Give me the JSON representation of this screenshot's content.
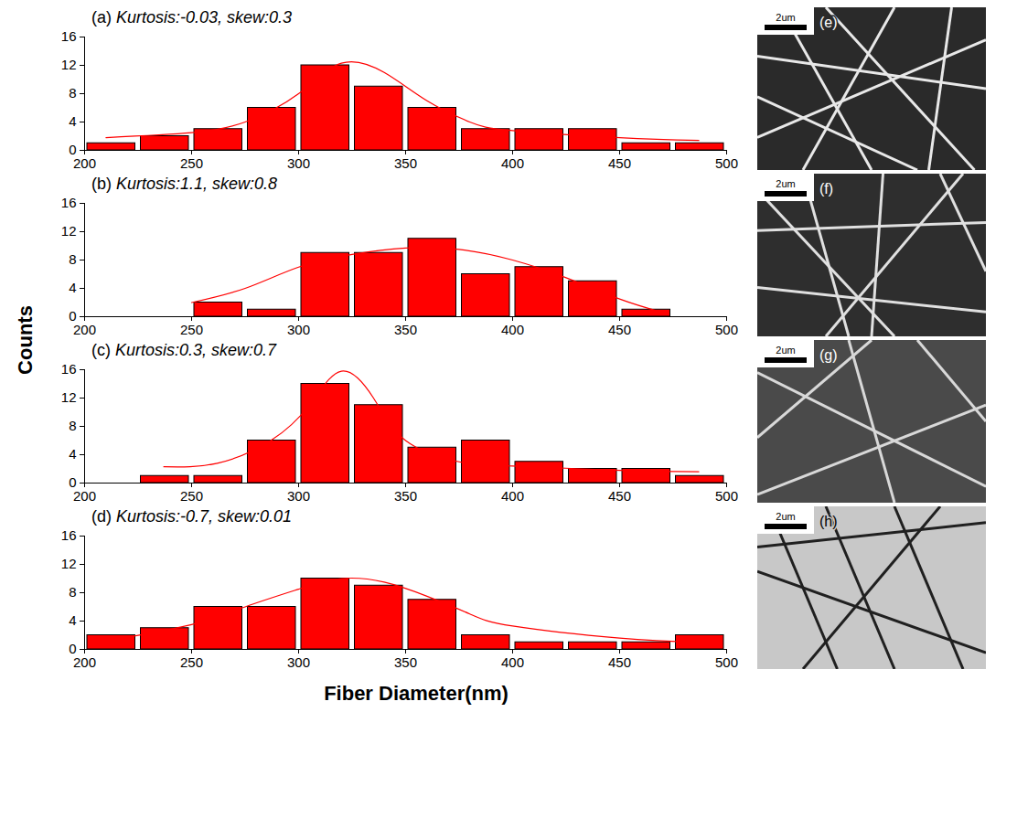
{
  "chart_data": [
    {
      "type": "histogram",
      "title": "(a) Kurtosis:-0.03, skew:0.3",
      "color": "#ff0000",
      "bins": [
        200,
        225,
        250,
        275,
        300,
        325,
        350,
        375,
        400,
        425,
        450,
        475,
        500
      ],
      "counts": [
        1,
        2,
        3,
        6,
        12,
        9,
        6,
        3,
        3,
        3,
        1,
        1
      ],
      "fit": {
        "x": [
          210,
          250,
          275,
          300,
          320,
          340,
          360,
          380,
          400,
          450,
          487
        ],
        "y": [
          1.8,
          2.5,
          4,
          8,
          12.3,
          11,
          7,
          4,
          2.8,
          1.8,
          1.4
        ],
        "color": "#ff0000"
      },
      "xlim": [
        200,
        500
      ],
      "xticks": [
        200,
        250,
        300,
        350,
        400,
        450,
        500
      ],
      "ylim": [
        0,
        16
      ],
      "yticks": [
        0,
        4,
        8,
        12,
        16
      ]
    },
    {
      "type": "histogram",
      "title": "(b) Kurtosis:1.1, skew:0.8",
      "color": "#ff0000",
      "bins": [
        200,
        225,
        250,
        275,
        300,
        325,
        350,
        375,
        400,
        425,
        450,
        475,
        500
      ],
      "counts": [
        0,
        0,
        2,
        1,
        9,
        9,
        11,
        6,
        7,
        5,
        1,
        0
      ],
      "fit": {
        "x": [
          250,
          275,
          300,
          325,
          350,
          375,
          400,
          425,
          450,
          470
        ],
        "y": [
          2,
          4,
          7,
          8.8,
          9.7,
          9.5,
          8,
          5.5,
          2.5,
          0.6
        ],
        "color": "#ff0000"
      },
      "xlim": [
        200,
        500
      ],
      "xticks": [
        200,
        250,
        300,
        350,
        400,
        450,
        500
      ],
      "ylim": [
        0,
        16
      ],
      "yticks": [
        0,
        4,
        8,
        12,
        16
      ]
    },
    {
      "type": "histogram",
      "title": "(c) Kurtosis:0.3, skew:0.7",
      "color": "#ff0000",
      "bins": [
        200,
        225,
        250,
        275,
        300,
        325,
        350,
        375,
        400,
        425,
        450,
        475,
        500
      ],
      "counts": [
        0,
        1,
        1,
        6,
        14,
        11,
        5,
        6,
        3,
        2,
        2,
        1
      ],
      "fit": {
        "x": [
          237,
          262,
          287,
          305,
          320,
          335,
          350,
          375,
          400,
          450,
          487
        ],
        "y": [
          2.3,
          2.8,
          6,
          11,
          15.8,
          12,
          6,
          3,
          2.4,
          1.8,
          1.6
        ],
        "color": "#ff0000"
      },
      "xlim": [
        200,
        500
      ],
      "xticks": [
        200,
        250,
        300,
        350,
        400,
        450,
        500
      ],
      "ylim": [
        0,
        16
      ],
      "yticks": [
        0,
        4,
        8,
        12,
        16
      ]
    },
    {
      "type": "histogram",
      "title": "(d) Kurtosis:-0.7, skew:0.01",
      "color": "#ff0000",
      "bins": [
        200,
        225,
        250,
        275,
        300,
        325,
        350,
        375,
        400,
        425,
        450,
        475,
        500
      ],
      "counts": [
        2,
        3,
        6,
        6,
        10,
        9,
        7,
        2,
        1,
        1,
        1,
        2
      ],
      "fit": {
        "x": [
          212,
          250,
          275,
          300,
          320,
          340,
          360,
          380,
          400,
          450,
          487
        ],
        "y": [
          1.3,
          3.5,
          6,
          8.5,
          10,
          9.5,
          7.5,
          5,
          3.3,
          1.6,
          1
        ],
        "color": "#ff0000"
      },
      "xlim": [
        200,
        500
      ],
      "xticks": [
        200,
        250,
        300,
        350,
        400,
        450,
        500
      ],
      "ylim": [
        0,
        16
      ],
      "yticks": [
        0,
        4,
        8,
        12,
        16
      ]
    }
  ],
  "xlabel": "Fiber Diameter(nm)",
  "ylabel": "Counts",
  "images": [
    {
      "label": "(e)",
      "scale_bar": "2um"
    },
    {
      "label": "(f)",
      "scale_bar": "2um"
    },
    {
      "label": "(g)",
      "scale_bar": "2um"
    },
    {
      "label": "(h)",
      "scale_bar": "2um"
    }
  ]
}
